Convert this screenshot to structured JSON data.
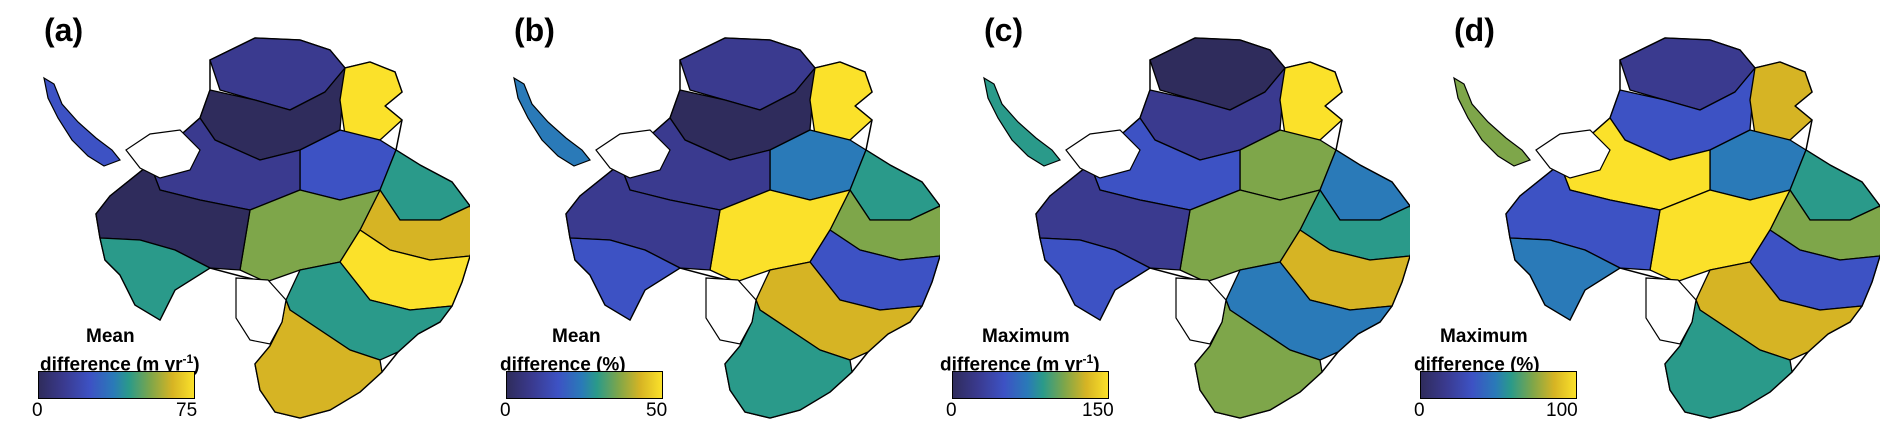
{
  "panels": [
    {
      "label": "(a)",
      "cb_line1": "Mean",
      "cb_line2": "difference (m yr",
      "cb_sup": "-1",
      "cb_close": ")",
      "min": "0",
      "max": "75"
    },
    {
      "label": "(b)",
      "cb_line1": "Mean",
      "cb_line2": "difference (%)",
      "cb_sup": "",
      "cb_close": "",
      "min": "0",
      "max": "50"
    },
    {
      "label": "(c)",
      "cb_line1": "Maximum",
      "cb_line2": "difference (m yr",
      "cb_sup": "-1",
      "cb_close": ")",
      "min": "0",
      "max": "150"
    },
    {
      "label": "(d)",
      "cb_line1": "Maximum",
      "cb_line2": "difference (%)",
      "cb_sup": "",
      "cb_close": "",
      "min": "0",
      "max": "100"
    }
  ],
  "colors": {
    "palette": [
      "#2f2c5c",
      "#3a3a8f",
      "#3d52c4",
      "#2a7ab8",
      "#2a9a8a",
      "#7ea64a",
      "#d6b424",
      "#fbe12a"
    ],
    "ice_shelf": "#ffffff",
    "outline": "#000000"
  }
}
